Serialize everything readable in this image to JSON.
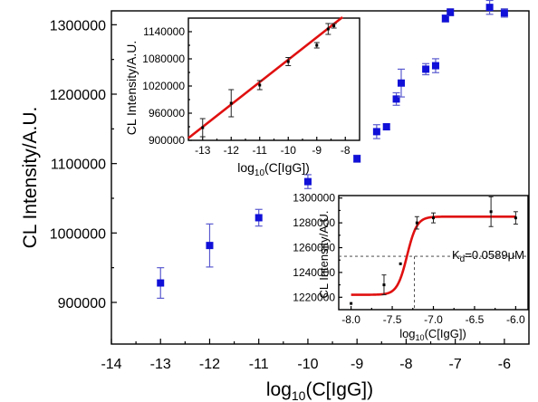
{
  "chart_data": [
    {
      "type": "scatter",
      "panel": "main",
      "xlabel_main": "log",
      "xlabel_sub": "10",
      "xlabel_rest": "(C[IgG])",
      "ylabel": "CL Intensity/A.U.",
      "xlim": [
        -14,
        -5.5
      ],
      "ylim": [
        840000,
        1320000
      ],
      "x_ticks": [
        -14,
        -13,
        -12,
        -11,
        -10,
        -9,
        -8,
        -7,
        -6
      ],
      "y_ticks": [
        900000,
        1000000,
        1100000,
        1200000,
        1300000
      ],
      "x_tick_labels": [
        "-14",
        "-13",
        "-12",
        "-11",
        "-10",
        "-9",
        "-8",
        "-7",
        "-6"
      ],
      "y_tick_labels": [
        "900000",
        "1000000",
        "1100000",
        "1200000",
        "1300000"
      ],
      "color": "#1010d8",
      "points": [
        {
          "x": -13,
          "y": 928000,
          "err": 22000
        },
        {
          "x": -12,
          "y": 982000,
          "err": 31000
        },
        {
          "x": -11,
          "y": 1022000,
          "err": 12000
        },
        {
          "x": -10,
          "y": 1074000,
          "err": 10000
        },
        {
          "x": -9,
          "y": 1107000,
          "err": 5000
        },
        {
          "x": -8.6,
          "y": 1146000,
          "err": 10000
        },
        {
          "x": -8.4,
          "y": 1153000,
          "err": 4000
        },
        {
          "x": -8.2,
          "y": 1193000,
          "err": 9000
        },
        {
          "x": -8.1,
          "y": 1216000,
          "err": 20000
        },
        {
          "x": -7.6,
          "y": 1236000,
          "err": 8000
        },
        {
          "x": -7.4,
          "y": 1241000,
          "err": 10000
        },
        {
          "x": -7.2,
          "y": 1309000,
          "err": 5000
        },
        {
          "x": -7.1,
          "y": 1318000,
          "err": 5000
        },
        {
          "x": -6.3,
          "y": 1325000,
          "err": 10000
        },
        {
          "x": -6,
          "y": 1317000,
          "err": 6000
        }
      ]
    },
    {
      "type": "line",
      "panel": "inset-top-left",
      "xlabel_main": "log",
      "xlabel_sub": "10",
      "xlabel_rest": "(C[IgG])",
      "ylabel": "CL Intensity/A.U.",
      "xlim": [
        -13.5,
        -7.5
      ],
      "ylim": [
        900000,
        1170000
      ],
      "x_ticks": [
        -13,
        -12,
        -11,
        -10,
        -9,
        -8
      ],
      "y_ticks": [
        900000,
        960000,
        1020000,
        1080000,
        1140000
      ],
      "x_tick_labels": [
        "-13",
        "-12",
        "-11",
        "-10",
        "-9",
        "-8"
      ],
      "y_tick_labels": [
        "900000",
        "960000",
        "1020000",
        "1080000",
        "1140000"
      ],
      "fit": {
        "x": [
          -13.5,
          -8.1
        ],
        "y": [
          905000,
          1172000
        ],
        "color": "#e01010"
      },
      "points": [
        {
          "x": -13,
          "y": 928000,
          "err": 20000
        },
        {
          "x": -12,
          "y": 982000,
          "err": 30000
        },
        {
          "x": -11,
          "y": 1022000,
          "err": 10000
        },
        {
          "x": -10,
          "y": 1074000,
          "err": 9000
        },
        {
          "x": -9,
          "y": 1110000,
          "err": 6000
        },
        {
          "x": -8.6,
          "y": 1146000,
          "err": 12000
        },
        {
          "x": -8.4,
          "y": 1153000,
          "err": 5000
        }
      ]
    },
    {
      "type": "line",
      "panel": "inset-bottom-right",
      "xlabel_main": "log",
      "xlabel_sub": "10",
      "xlabel_rest": "(C[IgG])",
      "ylabel": "CL Intensity/A.U.",
      "annotation_k": "K",
      "annotation_sub": "d",
      "annotation_value": "=0.0589μM",
      "xlim": [
        -8.15,
        -5.85
      ],
      "ylim": [
        1210000,
        1302000
      ],
      "x_ticks": [
        -8.0,
        -7.5,
        -7.0,
        -6.5,
        -6.0
      ],
      "y_ticks": [
        1220000,
        1240000,
        1260000,
        1280000,
        1300000
      ],
      "x_tick_labels": [
        "-8.0",
        "-7.5",
        "-7.0",
        "-6.5",
        "-6.0"
      ],
      "y_tick_labels": [
        "1220000",
        "1240000",
        "1260000",
        "1280000",
        "1300000"
      ],
      "kd_x": -7.23,
      "kd_y": 1253000,
      "fit": {
        "bottom": 1222000,
        "top": 1285000,
        "x0": -7.32,
        "width": 0.06,
        "xmin": -8.0,
        "xmax": -6.0,
        "color": "#e01010"
      },
      "points": [
        {
          "x": -8.0,
          "y": 1215000,
          "err": 0
        },
        {
          "x": -7.6,
          "y": 1230000,
          "err": 8000
        },
        {
          "x": -7.4,
          "y": 1247000,
          "err": 0
        },
        {
          "x": -7.2,
          "y": 1280000,
          "err": 5000
        },
        {
          "x": -7.0,
          "y": 1284000,
          "err": 4000
        },
        {
          "x": -6.3,
          "y": 1289000,
          "err": 12000
        },
        {
          "x": -6.0,
          "y": 1284000,
          "err": 5000
        }
      ]
    }
  ]
}
